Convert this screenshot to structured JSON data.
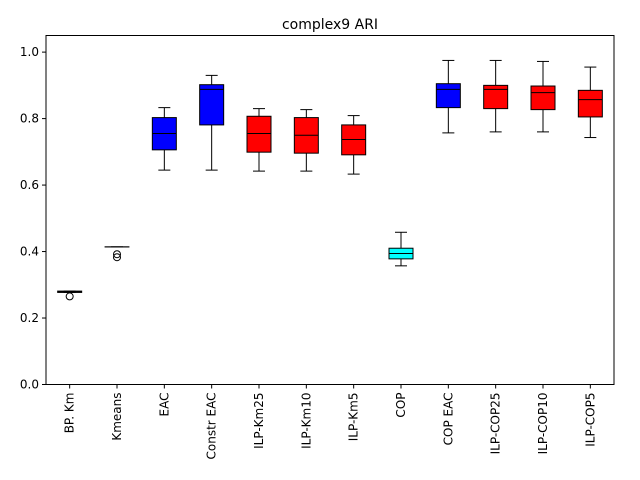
{
  "chart_data": {
    "type": "box",
    "title": "complex9 ARI",
    "xlabel": "",
    "ylabel": "",
    "ylim": [
      0.0,
      1.05
    ],
    "yticks": [
      "0.0",
      "0.2",
      "0.4",
      "0.6",
      "0.8",
      "1.0"
    ],
    "grid": false,
    "categories": [
      "BP. Km",
      "Kmeans",
      "EAC",
      "Constr EAC",
      "ILP-Km25",
      "ILP-Km10",
      "ILP-Km5",
      "COP",
      "COP EAC",
      "ILP-COP25",
      "ILP-COP10",
      "ILP-COP5"
    ],
    "boxes": [
      {
        "label": "BP. Km",
        "color": "#000000",
        "whislo": 0.277,
        "q1": 0.277,
        "med": 0.279,
        "q3": 0.281,
        "whishi": 0.281,
        "fliers": [
          0.265
        ]
      },
      {
        "label": "Kmeans",
        "color": "#000000",
        "whislo": 0.414,
        "q1": 0.414,
        "med": 0.414,
        "q3": 0.414,
        "whishi": 0.414,
        "fliers": [
          0.392,
          0.383
        ]
      },
      {
        "label": "EAC",
        "color": "#0000ff",
        "whislo": 0.645,
        "q1": 0.706,
        "med": 0.755,
        "q3": 0.803,
        "whishi": 0.833,
        "fliers": []
      },
      {
        "label": "Constr EAC",
        "color": "#0000ff",
        "whislo": 0.645,
        "q1": 0.781,
        "med": 0.888,
        "q3": 0.902,
        "whishi": 0.93,
        "fliers": []
      },
      {
        "label": "ILP-Km25",
        "color": "#ff0000",
        "whislo": 0.642,
        "q1": 0.699,
        "med": 0.755,
        "q3": 0.807,
        "whishi": 0.83,
        "fliers": []
      },
      {
        "label": "ILP-Km10",
        "color": "#ff0000",
        "whislo": 0.642,
        "q1": 0.696,
        "med": 0.75,
        "q3": 0.803,
        "whishi": 0.827,
        "fliers": []
      },
      {
        "label": "ILP-Km5",
        "color": "#ff0000",
        "whislo": 0.633,
        "q1": 0.691,
        "med": 0.737,
        "q3": 0.781,
        "whishi": 0.809,
        "fliers": []
      },
      {
        "label": "COP",
        "color": "#00ffff",
        "whislo": 0.357,
        "q1": 0.378,
        "med": 0.394,
        "q3": 0.41,
        "whishi": 0.458,
        "fliers": []
      },
      {
        "label": "COP EAC",
        "color": "#0000ff",
        "whislo": 0.757,
        "q1": 0.833,
        "med": 0.888,
        "q3": 0.905,
        "whishi": 0.975,
        "fliers": []
      },
      {
        "label": "ILP-COP25",
        "color": "#ff0000",
        "whislo": 0.76,
        "q1": 0.83,
        "med": 0.888,
        "q3": 0.9,
        "whishi": 0.975,
        "fliers": []
      },
      {
        "label": "ILP-COP10",
        "color": "#ff0000",
        "whislo": 0.76,
        "q1": 0.827,
        "med": 0.878,
        "q3": 0.898,
        "whishi": 0.972,
        "fliers": []
      },
      {
        "label": "ILP-COP5",
        "color": "#ff0000",
        "whislo": 0.743,
        "q1": 0.805,
        "med": 0.857,
        "q3": 0.885,
        "whishi": 0.955,
        "fliers": []
      }
    ]
  }
}
